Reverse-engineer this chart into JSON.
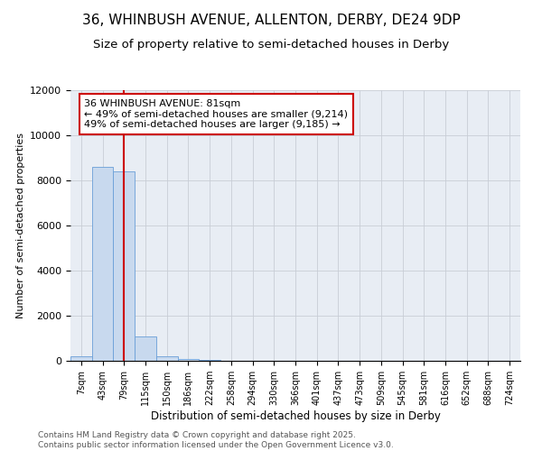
{
  "title": "36, WHINBUSH AVENUE, ALLENTON, DERBY, DE24 9DP",
  "subtitle": "Size of property relative to semi-detached houses in Derby",
  "xlabel": "Distribution of semi-detached houses by size in Derby",
  "ylabel": "Number of semi-detached properties",
  "categories": [
    "7sqm",
    "43sqm",
    "79sqm",
    "115sqm",
    "150sqm",
    "186sqm",
    "222sqm",
    "258sqm",
    "294sqm",
    "330sqm",
    "366sqm",
    "401sqm",
    "437sqm",
    "473sqm",
    "509sqm",
    "545sqm",
    "581sqm",
    "616sqm",
    "652sqm",
    "688sqm",
    "724sqm"
  ],
  "values": [
    200,
    8600,
    8400,
    1100,
    200,
    80,
    30,
    5,
    2,
    1,
    0,
    0,
    0,
    0,
    0,
    0,
    0,
    0,
    0,
    0,
    0
  ],
  "bar_color": "#c8d9ee",
  "bar_edge_color": "#6a9fd8",
  "vline_x_index": 2,
  "vline_color": "#cc0000",
  "annotation_text": "36 WHINBUSH AVENUE: 81sqm\n← 49% of semi-detached houses are smaller (9,214)\n49% of semi-detached houses are larger (9,185) →",
  "annotation_box_color": "#ffffff",
  "annotation_box_edge_color": "#cc0000",
  "ylim": [
    0,
    12000
  ],
  "yticks": [
    0,
    2000,
    4000,
    6000,
    8000,
    10000,
    12000
  ],
  "footer_text": "Contains HM Land Registry data © Crown copyright and database right 2025.\nContains public sector information licensed under the Open Government Licence v3.0.",
  "background_color": "#ffffff",
  "axes_bg_color": "#e8edf4",
  "grid_color": "#c8cdd6",
  "title_fontsize": 11,
  "subtitle_fontsize": 9.5,
  "annotation_fontsize": 8,
  "footer_fontsize": 6.5,
  "ylabel_fontsize": 8,
  "xlabel_fontsize": 8.5,
  "ytick_fontsize": 8,
  "xtick_fontsize": 7
}
